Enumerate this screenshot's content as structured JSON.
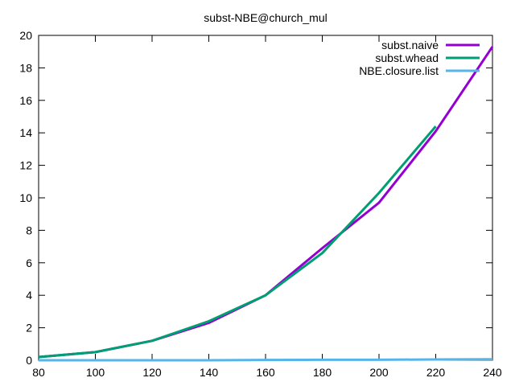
{
  "chart_data": {
    "type": "line",
    "title": "subst-NBE@church_mul",
    "xlabel": "",
    "ylabel": "",
    "x": [
      80,
      100,
      120,
      140,
      160,
      180,
      200,
      220,
      240
    ],
    "xlim": [
      80,
      240
    ],
    "ylim": [
      0,
      20
    ],
    "xticks": [
      80,
      100,
      120,
      140,
      160,
      180,
      200,
      220,
      240
    ],
    "yticks": [
      0,
      2,
      4,
      6,
      8,
      10,
      12,
      14,
      16,
      18,
      20
    ],
    "grid": false,
    "legend_position": "top-right",
    "series": [
      {
        "name": "subst.naive",
        "color": "#9400d3",
        "x": [
          80,
          100,
          120,
          140,
          160,
          180,
          200,
          220,
          240
        ],
        "values": [
          0.2,
          0.5,
          1.2,
          2.3,
          4.0,
          6.9,
          9.7,
          14.1,
          19.3
        ]
      },
      {
        "name": "subst.whead",
        "color": "#009e73",
        "x": [
          80,
          100,
          120,
          140,
          160,
          180,
          200,
          220
        ],
        "values": [
          0.2,
          0.5,
          1.2,
          2.4,
          4.0,
          6.6,
          10.3,
          14.4
        ]
      },
      {
        "name": "NBE.closure.list",
        "color": "#56b4e9",
        "x": [
          80,
          100,
          120,
          140,
          160,
          180,
          200,
          220,
          240
        ],
        "values": [
          0.0,
          0.0,
          0.0,
          0.0,
          0.02,
          0.03,
          0.03,
          0.05,
          0.06
        ]
      }
    ]
  }
}
